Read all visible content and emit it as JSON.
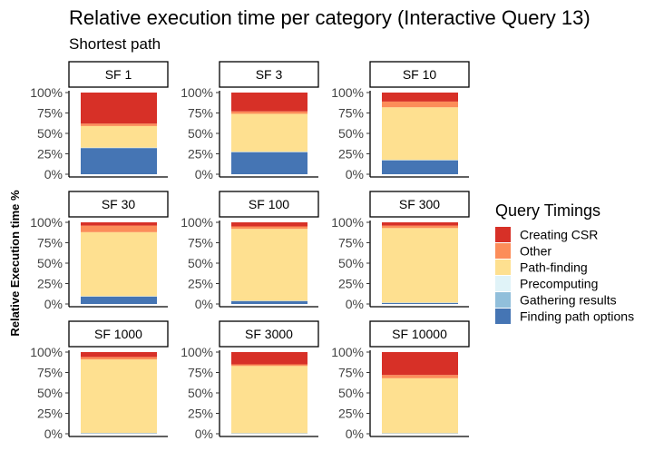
{
  "chart_data": {
    "type": "bar",
    "title": "Relative execution time per category (Interactive Query 13)",
    "subtitle": "Shortest path",
    "ylabel": "Relative Execution time %",
    "ylim": [
      0,
      100
    ],
    "y_ticks": [
      "0%",
      "25%",
      "50%",
      "75%",
      "100%"
    ],
    "grid": false,
    "legend": {
      "title": "Query Timings",
      "position": "right",
      "items": [
        {
          "name": "Creating CSR",
          "color": "#d73027"
        },
        {
          "name": "Other",
          "color": "#fc8d59"
        },
        {
          "name": "Path-finding",
          "color": "#fee090"
        },
        {
          "name": "Precomputing",
          "color": "#e0f3f8"
        },
        {
          "name": "Gathering results",
          "color": "#91bfdb"
        },
        {
          "name": "Finding path options",
          "color": "#4575b4"
        }
      ]
    },
    "stack_order_bottom_to_top": [
      "Finding path options",
      "Gathering results",
      "Precomputing",
      "Path-finding",
      "Other",
      "Creating CSR"
    ],
    "panels": [
      {
        "label": "SF 1",
        "values": {
          "Finding path options": 32,
          "Gathering results": 0.3,
          "Precomputing": 0.3,
          "Path-finding": 26.4,
          "Other": 3,
          "Creating CSR": 38
        }
      },
      {
        "label": "SF 3",
        "values": {
          "Finding path options": 27,
          "Gathering results": 0.3,
          "Precomputing": 0.3,
          "Path-finding": 46.4,
          "Other": 3,
          "Creating CSR": 23
        }
      },
      {
        "label": "SF 10",
        "values": {
          "Finding path options": 17,
          "Gathering results": 0.3,
          "Precomputing": 0.3,
          "Path-finding": 64.4,
          "Other": 7,
          "Creating CSR": 11
        }
      },
      {
        "label": "SF 30",
        "values": {
          "Finding path options": 9,
          "Gathering results": 0.3,
          "Precomputing": 0.3,
          "Path-finding": 78.4,
          "Other": 8,
          "Creating CSR": 4
        }
      },
      {
        "label": "SF 100",
        "values": {
          "Finding path options": 3.5,
          "Gathering results": 0.3,
          "Precomputing": 0.2,
          "Path-finding": 88,
          "Other": 3,
          "Creating CSR": 5
        }
      },
      {
        "label": "SF 300",
        "values": {
          "Finding path options": 1.2,
          "Gathering results": 0.3,
          "Precomputing": 0.2,
          "Path-finding": 91.3,
          "Other": 3,
          "Creating CSR": 4
        }
      },
      {
        "label": "SF 1000",
        "values": {
          "Finding path options": 0.4,
          "Gathering results": 0.3,
          "Precomputing": 0.2,
          "Path-finding": 90.1,
          "Other": 3,
          "Creating CSR": 6
        }
      },
      {
        "label": "SF 3000",
        "values": {
          "Finding path options": 0.3,
          "Gathering results": 0.2,
          "Precomputing": 0.2,
          "Path-finding": 82.3,
          "Other": 2,
          "Creating CSR": 15
        }
      },
      {
        "label": "SF 10000",
        "values": {
          "Finding path options": 0.3,
          "Gathering results": 0.2,
          "Precomputing": 0.2,
          "Path-finding": 67.3,
          "Other": 4,
          "Creating CSR": 28
        }
      }
    ]
  }
}
